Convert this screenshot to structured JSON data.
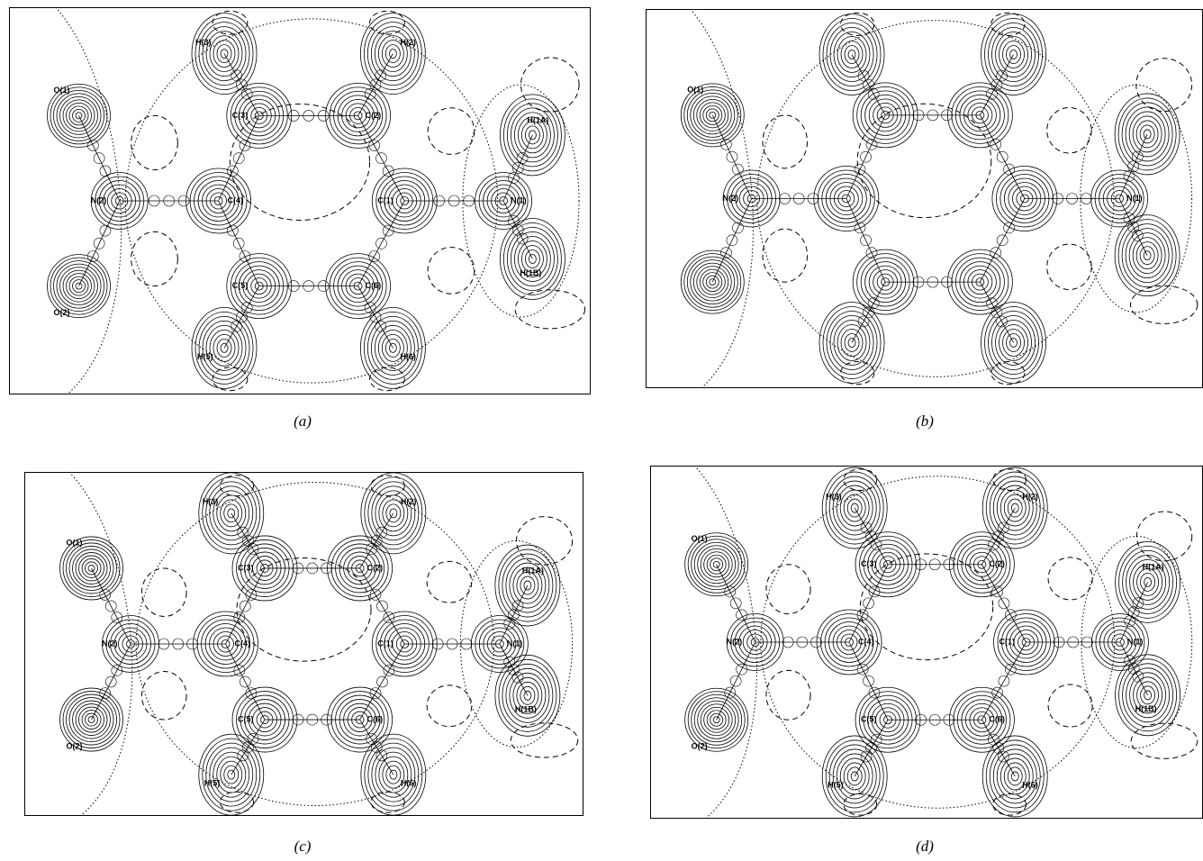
{
  "panels": [
    {
      "caption": "(a)",
      "labels": {
        "H3": "H(3)",
        "H2": "H(2)",
        "O1": "O(1)",
        "C3": "C(3)",
        "C2": "C(2)",
        "H1A": "H(1A)",
        "N2": "N(2)",
        "C4": "C(4)",
        "C1": "C(1)",
        "N1": "N(1)",
        "H1B": "H(1B)",
        "O2": "O(2)",
        "C5": "C(5)",
        "C6": "C(6)",
        "H5": "H(5)",
        "H6": "H(6)"
      }
    },
    {
      "caption": "(b)",
      "labels": {
        "O1": "O(1)",
        "N2": "N(2)",
        "N1": "N(1)"
      }
    },
    {
      "caption": "(c)",
      "labels": {
        "H3": "H(3)",
        "H2": "H(2)",
        "O1": "O(1)",
        "C3": "C(3)",
        "C2": "C(2)",
        "H1A": "H(1A)",
        "N2": "N(2)",
        "C4": "C(4)",
        "C1": "C(1)",
        "N1": "N(1)",
        "C5": "C(5)",
        "C6": "C(6)",
        "H1B": "H(1B)",
        "O2": "O(2)",
        "H5": "H(5)",
        "H6": "H(6)"
      }
    },
    {
      "caption": "(d)",
      "labels": {
        "H3": "H(3)",
        "H2": "H(2)",
        "O1": "O(1)",
        "C3": "C(3)",
        "C2": "C(2)",
        "H1A": "H(1A)",
        "N2": "N(2)",
        "C4": "C(4)",
        "C1": "C(1)",
        "N1": "N(1)",
        "C5": "C(5)",
        "C6": "C(6)",
        "H1B": "H(1B)",
        "O2": "O(2)",
        "H5": "H(5)",
        "H6": "H(6)"
      }
    }
  ]
}
